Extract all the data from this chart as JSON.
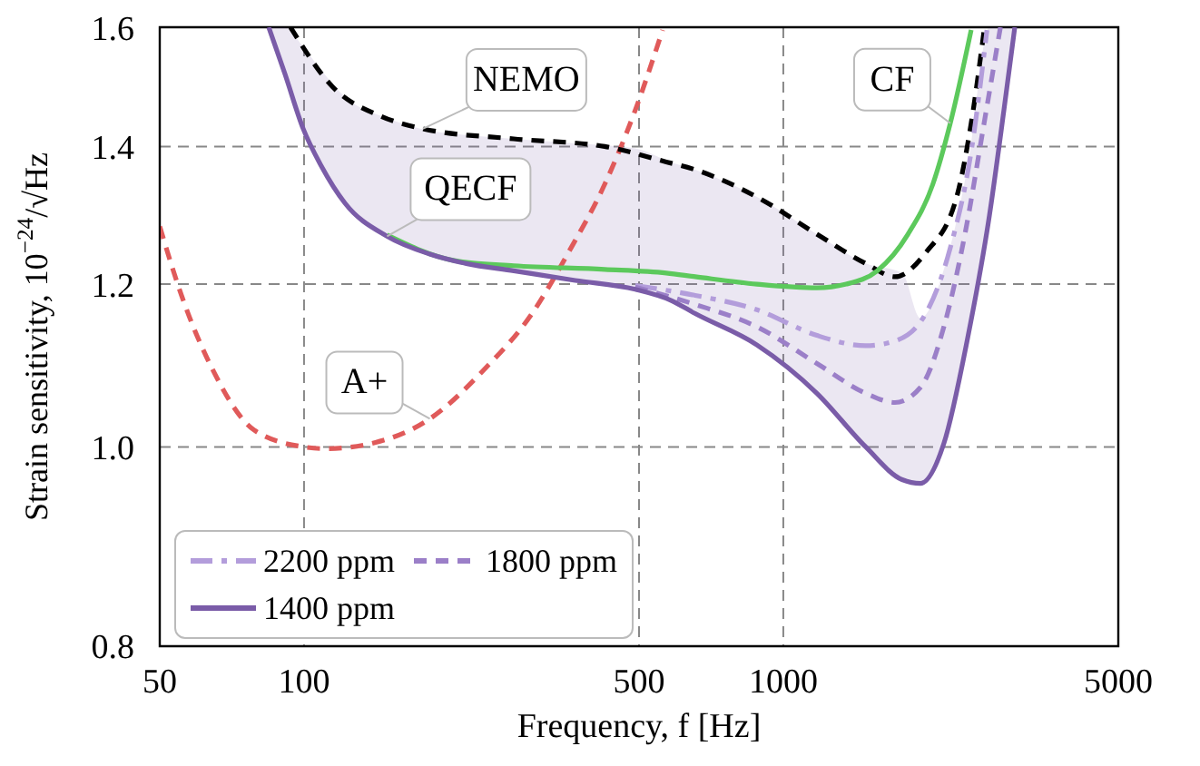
{
  "chart_data": {
    "type": "line",
    "xlabel": "Frequency, f [Hz]",
    "ylabel": "Strain sensitivity, 10$^{−24}$/√Hz",
    "log": "xy",
    "xlim": [
      50,
      5000
    ],
    "xticks": [
      50,
      100,
      500,
      1000,
      5000
    ],
    "ylim": [
      0.8,
      1.6
    ],
    "yticks": [
      {
        "value": 0.8,
        "label": "0.8"
      },
      {
        "value": 1,
        "label": "1.0"
      },
      {
        "value": 1.2,
        "label": "1.2"
      },
      {
        "value": 1.4,
        "label": "1.4"
      },
      {
        "value": 1.6,
        "label": "1.6"
      }
    ],
    "grid": true,
    "legend": "bottom left",
    "series": [
      {
        "color": "#e05a5a",
        "line_style": "dashed",
        "x": [
          50,
          55.5,
          64.4,
          78.7,
          100,
          111,
          141,
          183,
          238,
          299,
          356,
          424,
          491,
          560
        ],
        "values": [
          1.28,
          1.185,
          1.091,
          1.019,
          1.0,
          0.998,
          1.005,
          1.032,
          1.091,
          1.161,
          1.243,
          1.342,
          1.458,
          1.595
        ]
      },
      {
        "color": "#000000",
        "line_style": "dashed",
        "x": [
          93.7,
          114.6,
          145,
          177,
          274,
          424,
          570,
          655,
          881,
          1175,
          1486,
          1710,
          1982,
          2300,
          2466,
          2624
        ],
        "values": [
          1.6,
          1.497,
          1.448,
          1.428,
          1.412,
          1.4,
          1.376,
          1.364,
          1.323,
          1.269,
          1.228,
          1.21,
          1.243,
          1.323,
          1.437,
          1.595
        ]
      },
      {
        "color": "#5cc95c",
        "line_style": "solid",
        "x": [
          149,
          206,
          274,
          424,
          570,
          655,
          881,
          1175,
          1353,
          1570,
          1820,
          2051,
          2231,
          2466
        ],
        "values": [
          1.268,
          1.232,
          1.225,
          1.22,
          1.215,
          1.21,
          1.2,
          1.195,
          1.2,
          1.218,
          1.269,
          1.342,
          1.437,
          1.595
        ]
      },
      {
        "name": "2200 ppm",
        "color": "#b39ddb",
        "line_style": "dashdot",
        "x": [
          491,
          655,
          881,
          1175,
          1486,
          1710,
          1982,
          2231,
          2466,
          2660
        ],
        "values": [
          1.198,
          1.185,
          1.166,
          1.133,
          1.12,
          1.126,
          1.161,
          1.25,
          1.392,
          1.595
        ]
      },
      {
        "name": "1800 ppm",
        "color": "#9b7fc8",
        "line_style": "dashed",
        "x": [
          491,
          655,
          881,
          1175,
          1486,
          1710,
          1933,
          2163,
          2393,
          2624,
          2838
        ],
        "values": [
          1.196,
          1.173,
          1.144,
          1.098,
          1.062,
          1.051,
          1.069,
          1.144,
          1.269,
          1.437,
          1.6
        ]
      },
      {
        "name": "1400 ppm",
        "color": "#7a5ca8",
        "line_style": "solid",
        "x": [
          84.4,
          91.2,
          99.6,
          108.6,
          121.7,
          149,
          183,
          218,
          274,
          368,
          491,
          585,
          655,
          881,
          1175,
          1486,
          1770,
          1933,
          2163,
          2425,
          2692,
          2886,
          3041
        ],
        "values": [
          1.6,
          1.519,
          1.428,
          1.37,
          1.314,
          1.266,
          1.241,
          1.228,
          1.218,
          1.205,
          1.193,
          1.178,
          1.161,
          1.121,
          1.062,
          1.0,
          0.964,
          0.96,
          1.004,
          1.13,
          1.296,
          1.458,
          1.6
        ],
        "lower": [
          1.6,
          1.519,
          1.428,
          1.37,
          1.314,
          1.266,
          1.241,
          1.228,
          1.218,
          1.205,
          1.193,
          1.178,
          1.161,
          1.121,
          1.062,
          1.0,
          0.964,
          0.96,
          1.004,
          1.13,
          1.296,
          1.458,
          1.6
        ],
        "upper": [
          1.6,
          1.6,
          1.565,
          1.525,
          1.48,
          1.445,
          1.425,
          1.418,
          1.412,
          1.405,
          1.397,
          1.375,
          1.364,
          1.323,
          1.269,
          1.228,
          1.215,
          1.155,
          1.22,
          1.37,
          1.6,
          1.6,
          1.6
        ]
      }
    ],
    "annotations": [
      {
        "text": "NEMO",
        "x": 177,
        "y": 1.428
      },
      {
        "text": "CF",
        "x": 2231,
        "y": 1.437
      },
      {
        "text": "QECF",
        "x": 149,
        "y": 1.266
      },
      {
        "text": "A+",
        "x": 183,
        "y": 1.032
      }
    ]
  }
}
